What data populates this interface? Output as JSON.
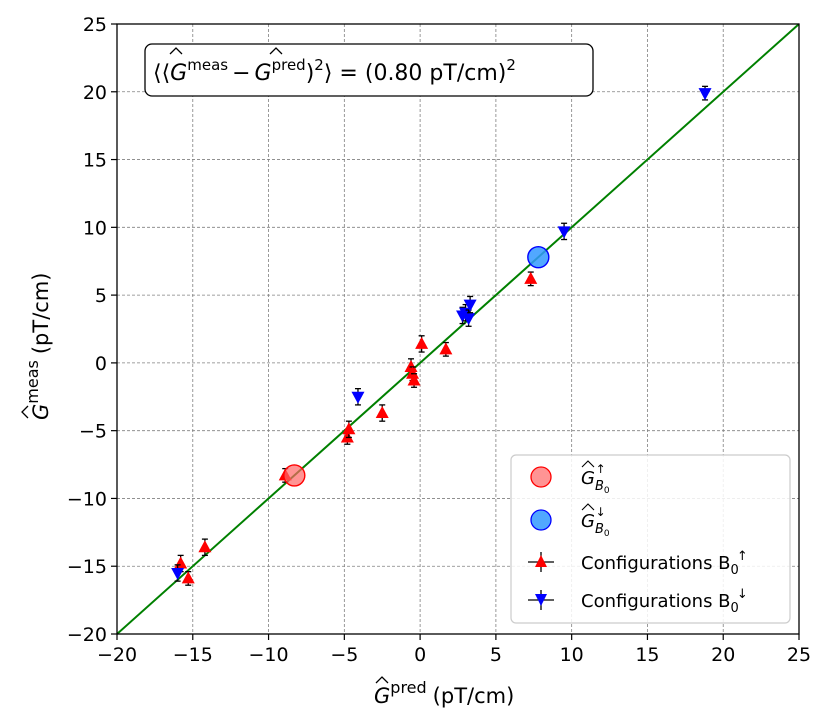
{
  "chart_data": {
    "type": "scatter",
    "title": "",
    "xlabel": "pred",
    "xlabel_unit": "(pT/cm)",
    "ylabel": "meas",
    "ylabel_unit": "(pT/cm)",
    "xlim": [
      -20,
      25
    ],
    "ylim": [
      -20,
      25
    ],
    "xticks": [
      -20,
      -15,
      -10,
      -5,
      0,
      5,
      10,
      15,
      20,
      25
    ],
    "yticks": [
      -20,
      -15,
      -10,
      -5,
      0,
      5,
      10,
      15,
      20,
      25
    ],
    "xtick_labels": [
      "−20",
      "−15",
      "−10",
      "−5",
      "0",
      "5",
      "10",
      "15",
      "20",
      "25"
    ],
    "ytick_labels": [
      "−20",
      "−15",
      "−10",
      "−5",
      "0",
      "5",
      "10",
      "15",
      "20",
      "25"
    ],
    "grid": true,
    "annotation": {
      "text": "⟨(Ĝ meas − Ĝ pred)²⟩ = (0.80 pT/cm)²",
      "prefix": "⟨⟨",
      "g_symbol": "G",
      "sup_meas": "meas",
      "minus": "−",
      "sup_pred": "pred",
      "close": ")",
      "sup_2": "2",
      "close_angle": "⟩",
      "equals_value": " = (0.80 pT/cm)",
      "sup_end": "2"
    },
    "reference_line": {
      "name": "y = x",
      "x": [
        -20,
        25
      ],
      "y": [
        -20,
        25
      ],
      "color": "#008000"
    },
    "series": [
      {
        "name": "Configurations B0 up",
        "legend_label": "Configurations B",
        "legend_sub": "0",
        "legend_sup": "↑",
        "marker": "triangle-up",
        "color": "#ff0000",
        "points": [
          {
            "x": -15.8,
            "y": -14.8,
            "yerr": 0.6
          },
          {
            "x": -15.3,
            "y": -15.9,
            "yerr": 0.5
          },
          {
            "x": -14.2,
            "y": -13.6,
            "yerr": 0.6
          },
          {
            "x": -8.9,
            "y": -8.3,
            "yerr": 0.5
          },
          {
            "x": -4.8,
            "y": -5.5,
            "yerr": 0.5
          },
          {
            "x": -4.7,
            "y": -4.9,
            "yerr": 0.6
          },
          {
            "x": -2.5,
            "y": -3.7,
            "yerr": 0.6
          },
          {
            "x": -0.6,
            "y": -0.3,
            "yerr": 0.6
          },
          {
            "x": -0.5,
            "y": -0.8,
            "yerr": 0.5
          },
          {
            "x": -0.4,
            "y": -1.3,
            "yerr": 0.5
          },
          {
            "x": 0.1,
            "y": 1.4,
            "yerr": 0.6
          },
          {
            "x": 1.7,
            "y": 1.0,
            "yerr": 0.5
          },
          {
            "x": 7.3,
            "y": 6.2,
            "yerr": 0.5
          }
        ]
      },
      {
        "name": "Configurations B0 down",
        "legend_label": "Configurations B",
        "legend_sub": "0",
        "legend_sup": "↓",
        "marker": "triangle-down",
        "color": "#0000ff",
        "points": [
          {
            "x": -16.0,
            "y": -15.5,
            "yerr": 0.6
          },
          {
            "x": -4.1,
            "y": -2.5,
            "yerr": 0.6
          },
          {
            "x": 2.8,
            "y": 3.5,
            "yerr": 0.6
          },
          {
            "x": 3.0,
            "y": 3.7,
            "yerr": 0.6
          },
          {
            "x": 3.2,
            "y": 3.3,
            "yerr": 0.6
          },
          {
            "x": 3.3,
            "y": 4.3,
            "yerr": 0.6
          },
          {
            "x": 9.5,
            "y": 9.7,
            "yerr": 0.6
          },
          {
            "x": 18.8,
            "y": 19.9,
            "yerr": 0.5
          }
        ]
      }
    ],
    "averages": [
      {
        "name": "G B0 up",
        "legend_label": "G",
        "legend_sub": "B",
        "legend_subsub": "0",
        "legend_sup": "↑",
        "x": -8.3,
        "y": -8.3,
        "color": "#ff6666",
        "edge": "#ff0000"
      },
      {
        "name": "G B0 down",
        "legend_label": "G",
        "legend_sub": "B",
        "legend_subsub": "0",
        "legend_sup": "↓",
        "x": 7.8,
        "y": 7.8,
        "color": "#3399ff",
        "edge": "#0000ff"
      }
    ],
    "legend_location": "lower-right"
  }
}
